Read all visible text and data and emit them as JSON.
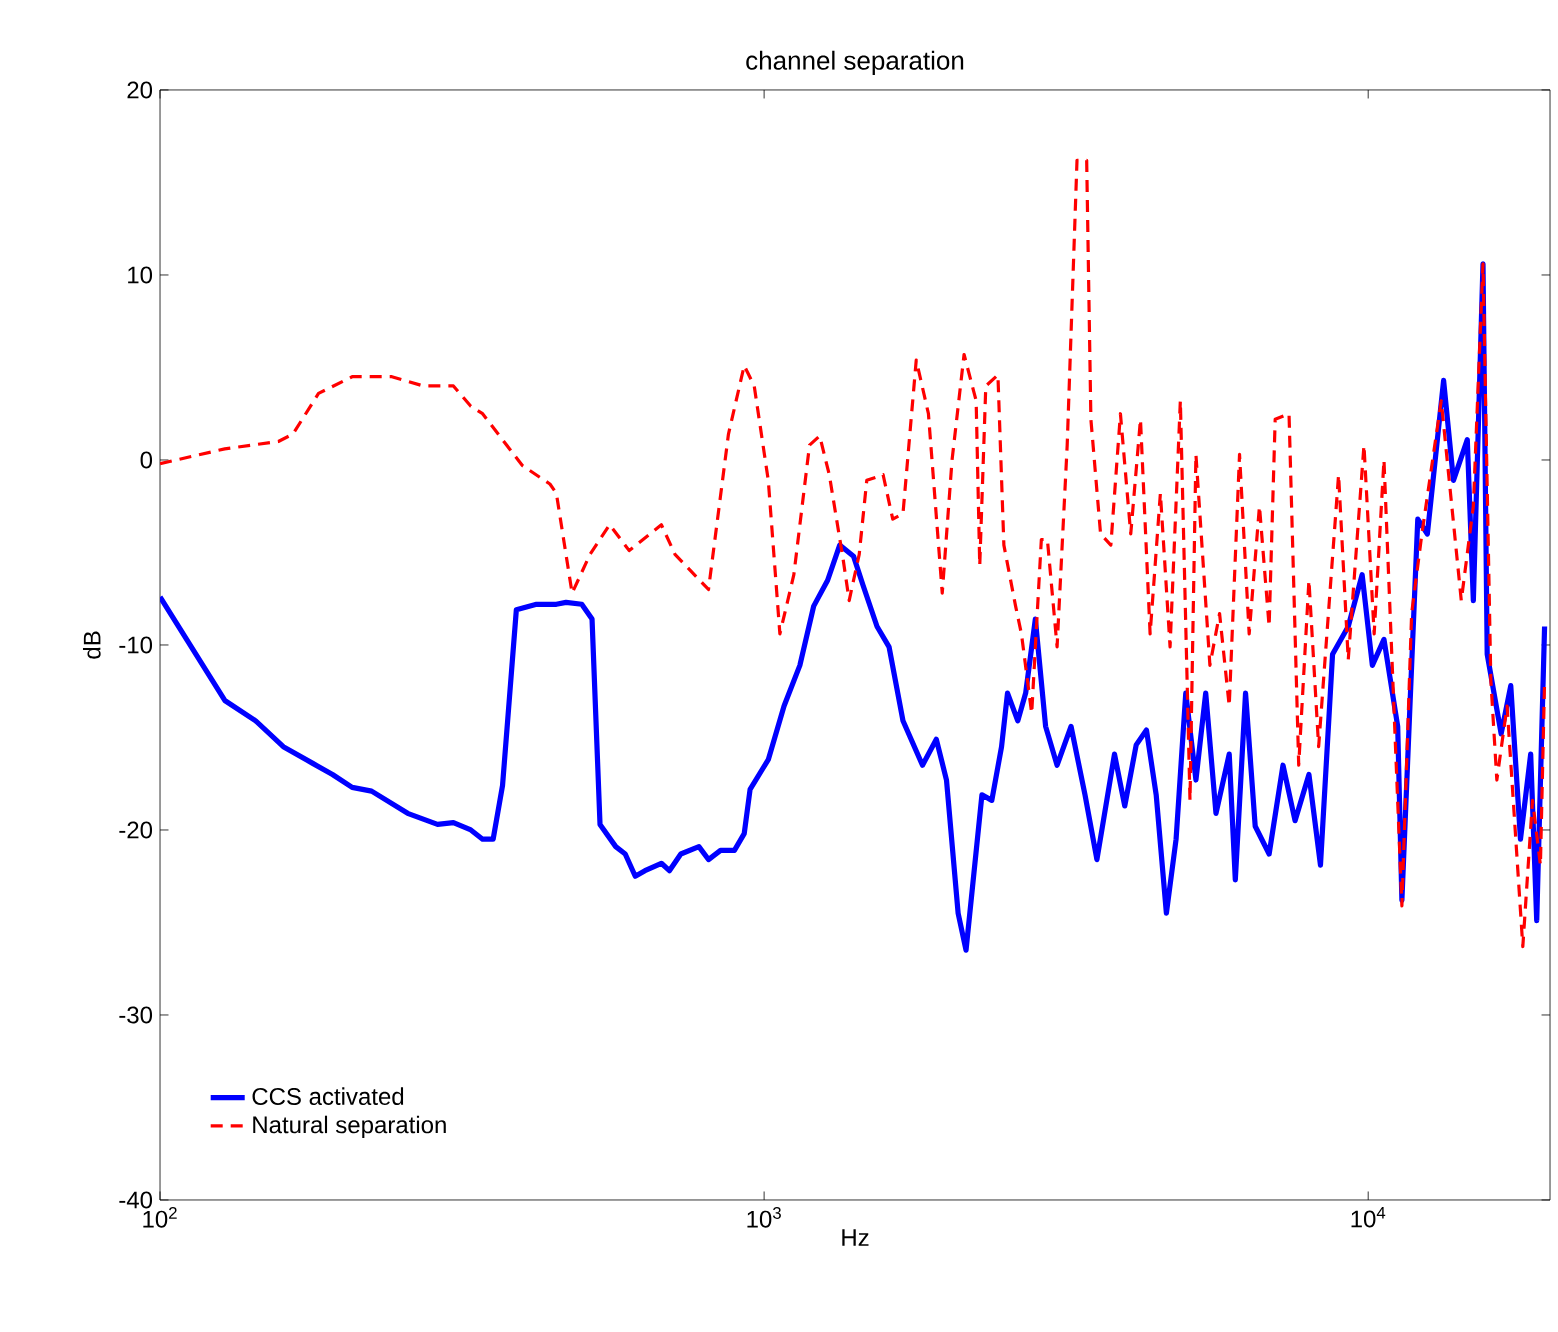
{
  "chart_data": {
    "type": "line",
    "title": "channel separation",
    "xlabel": "Hz",
    "ylabel": "dB",
    "log": "x",
    "xlim": [
      100,
      20000
    ],
    "ylim": [
      -40,
      20
    ],
    "xticks": [
      {
        "value": 100,
        "label": "10$^{2}$"
      },
      {
        "value": 1000,
        "label": "10$^{3}$"
      },
      {
        "value": 10000,
        "label": "10$^{4}$"
      }
    ],
    "yticks": [
      -40,
      -30,
      -20,
      -10,
      0,
      10,
      20
    ],
    "legend": "bottom left",
    "grid": false,
    "series": [
      {
        "name": "CCS activated",
        "color": "#0000ff",
        "line_style": "solid",
        "x": [
          100,
          128,
          144,
          160,
          179,
          193,
          208,
          224,
          257,
          288,
          306,
          327,
          342,
          356,
          369,
          389,
          420,
          453,
          470,
          499,
          519,
          535,
          568,
          589,
          612,
          635,
          676,
          697,
          728,
          780,
          809,
          847,
          893,
          927,
          948,
          1016,
          1079,
          1146,
          1208,
          1274,
          1334,
          1406,
          1459,
          1538,
          1610,
          1698,
          1829,
          1928,
          2004,
          2095,
          2159,
          2294,
          2382,
          2472,
          2529,
          2630,
          2710,
          2812,
          2924,
          3055,
          3222,
          3398,
          3556,
          3802,
          3954,
          4130,
          4295,
          4457,
          4634,
          4808,
          4989,
          5186,
          5383,
          5598,
          5888,
          6026,
          6266,
          6501,
          6855,
          7228,
          7568,
          7980,
          8337,
          8730,
          9268,
          9772,
          10160,
          10620,
          11190,
          11370,
          11800,
          12080,
          12530,
          13330,
          13840,
          14590,
          14930,
          15490,
          15740,
          16600,
          17220,
          17870,
          18580,
          19010,
          19590
        ],
        "values": [
          -7.4,
          -13.0,
          -14.1,
          -15.5,
          -16.4,
          -17.0,
          -17.7,
          -17.9,
          -19.1,
          -19.7,
          -19.6,
          -20.0,
          -20.5,
          -20.5,
          -17.6,
          -8.1,
          -7.8,
          -7.8,
          -7.7,
          -7.8,
          -8.6,
          -19.7,
          -20.9,
          -21.3,
          -22.5,
          -22.2,
          -21.8,
          -22.2,
          -21.3,
          -20.9,
          -21.6,
          -21.1,
          -21.1,
          -20.2,
          -17.8,
          -16.2,
          -13.3,
          -11.1,
          -7.9,
          -6.5,
          -4.6,
          -5.2,
          -6.8,
          -9.0,
          -10.1,
          -14.1,
          -16.5,
          -15.1,
          -17.3,
          -24.5,
          -26.5,
          -18.1,
          -18.4,
          -15.5,
          -12.6,
          -14.1,
          -12.6,
          -8.6,
          -14.4,
          -16.5,
          -14.4,
          -18.1,
          -21.6,
          -15.9,
          -18.7,
          -15.4,
          -14.6,
          -18.1,
          -24.5,
          -20.5,
          -12.6,
          -17.3,
          -12.6,
          -19.1,
          -15.9,
          -22.7,
          -12.6,
          -19.8,
          -21.3,
          -16.5,
          -19.5,
          -17.0,
          -21.9,
          -10.5,
          -9.0,
          -6.2,
          -11.1,
          -9.7,
          -14.4,
          -23.8,
          -11.1,
          -3.2,
          -4.0,
          4.3,
          -1.1,
          1.1,
          -7.6,
          10.6,
          -10.5,
          -14.8,
          -12.2,
          -20.5,
          -15.9,
          -24.9,
          -9.0
        ]
      },
      {
        "name": "Natural separation",
        "color": "#ff0000",
        "line_style": "dashed",
        "x": [
          100,
          128,
          157,
          166,
          183,
          208,
          242,
          273,
          306,
          327,
          342,
          398,
          442,
          453,
          481,
          515,
          555,
          598,
          676,
          712,
          809,
          873,
          927,
          963,
          1016,
          1062,
          1120,
          1189,
          1236,
          1282,
          1352,
          1383,
          1437,
          1479,
          1574,
          1633,
          1698,
          1786,
          1871,
          1972,
          2047,
          2143,
          2244,
          2275,
          2328,
          2438,
          2494,
          2608,
          2667,
          2773,
          2877,
          2944,
          3055,
          3175,
          3296,
          3420,
          3475,
          3606,
          3750,
          3890,
          4045,
          4198,
          4355,
          4529,
          4699,
          4887,
          5070,
          5186,
          5470,
          5675,
          5888,
          6124,
          6353,
          6607,
          6855,
          7015,
          7396,
          7674,
          7980,
          8279,
          8933,
          9268,
          9840,
          10230,
          10620,
          11370,
          11800,
          12270,
          13210,
          14260,
          14930,
          15490,
          15960,
          16330,
          16980,
          18030,
          18710,
          19280,
          19590
        ],
        "values": [
          -0.2,
          0.6,
          1.0,
          1.4,
          3.6,
          4.5,
          4.5,
          4.0,
          4.0,
          2.9,
          2.5,
          -0.3,
          -1.3,
          -1.8,
          -7.2,
          -5.1,
          -3.5,
          -4.9,
          -3.5,
          -5.1,
          -7.0,
          1.4,
          5.1,
          4.0,
          -1.1,
          -9.4,
          -6.2,
          0.8,
          1.3,
          -0.8,
          -5.4,
          -7.6,
          -5.1,
          -1.1,
          -0.8,
          -3.2,
          -2.9,
          5.4,
          2.5,
          -7.2,
          0.0,
          5.7,
          3.2,
          -5.7,
          4.0,
          4.6,
          -4.6,
          -7.9,
          -9.4,
          -13.7,
          -4.3,
          -4.3,
          -10.1,
          0.8,
          16.2,
          16.2,
          2.2,
          -4.0,
          -4.6,
          2.5,
          -4.0,
          2.2,
          -9.4,
          -1.8,
          -10.1,
          3.2,
          -18.4,
          0.3,
          -11.1,
          -8.3,
          -13.3,
          0.3,
          -9.4,
          -2.5,
          -9.0,
          2.2,
          2.5,
          -16.5,
          -6.5,
          -15.5,
          -0.8,
          -10.8,
          0.8,
          -9.4,
          0.0,
          -24.1,
          -8.3,
          -4.0,
          3.2,
          -7.6,
          -2.5,
          10.6,
          -11.9,
          -17.3,
          -13.3,
          -26.3,
          -18.4,
          -21.9,
          -11.9
        ]
      }
    ]
  }
}
